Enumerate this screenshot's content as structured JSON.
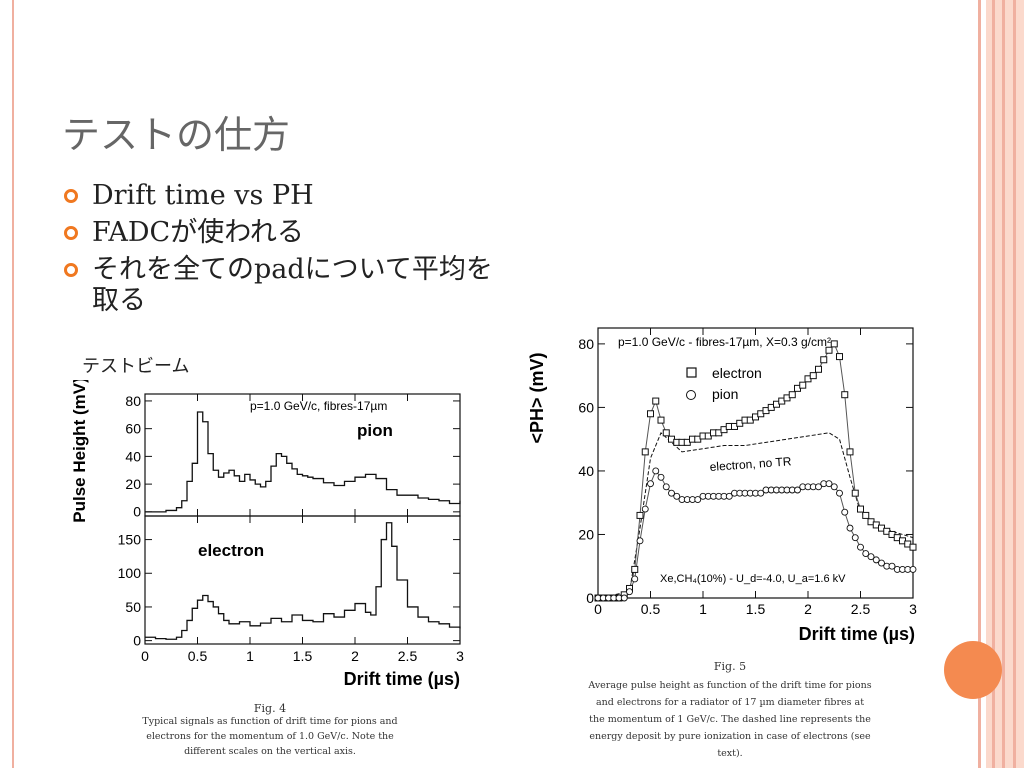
{
  "title": "テストの仕方",
  "bullets": [
    "Drift time vs PH",
    "FADCが使われる",
    "それを全てのpadについて平均を取る"
  ],
  "beam_label": "テストビーム",
  "colors": {
    "accent": "#f07820",
    "band": "#fbd9cc",
    "stripe": "#f0b0a0",
    "dot": "#f48a50"
  },
  "fig4": {
    "annotation": "p=1.0 GeV/c, fibres-17µm",
    "xlabel": "Drift time (µs)",
    "ylabel": "Pulse Height (mV)",
    "caption_title": "Fig. 4",
    "caption_lines": [
      "Typical signals as function of drift time for pions and",
      "electrons for the momentum of 1.0 GeV/c. Note the",
      "different scales on the vertical axis."
    ]
  },
  "fig5": {
    "caption_title": "Fig. 5",
    "caption_lines": [
      "Average pulse height as function of the drift time for pions",
      "and electrons for a radiator of 17 µm diameter fibres at",
      "the momentum of 1 GeV/c. The dashed line represents the",
      "energy deposit by pure ionization in case of electrons (see",
      "text)."
    ]
  },
  "chart_data": [
    {
      "type": "line",
      "panel": "top",
      "label": "pion",
      "x_ticks": [
        0,
        0.5,
        1,
        1.5,
        2,
        2.5,
        3
      ],
      "y_ticks": [
        0,
        20,
        40,
        60,
        80
      ],
      "xlim": [
        0,
        3
      ],
      "ylim": [
        -3,
        85
      ],
      "x": [
        0.0,
        0.1,
        0.2,
        0.3,
        0.35,
        0.4,
        0.45,
        0.5,
        0.55,
        0.6,
        0.65,
        0.7,
        0.75,
        0.8,
        0.85,
        0.9,
        0.95,
        1.0,
        1.05,
        1.1,
        1.15,
        1.2,
        1.25,
        1.3,
        1.35,
        1.4,
        1.45,
        1.5,
        1.55,
        1.6,
        1.7,
        1.8,
        1.9,
        2.0,
        2.1,
        2.2,
        2.3,
        2.4,
        2.5,
        2.6,
        2.7,
        2.8,
        2.9,
        3.0
      ],
      "y": [
        0,
        0,
        1,
        3,
        8,
        22,
        35,
        72,
        65,
        42,
        30,
        25,
        28,
        30,
        26,
        22,
        27,
        23,
        20,
        18,
        22,
        33,
        42,
        40,
        35,
        31,
        27,
        26,
        25,
        24,
        21,
        19,
        22,
        25,
        27,
        24,
        16,
        12,
        12,
        10,
        9,
        8,
        6,
        8
      ]
    },
    {
      "type": "line",
      "panel": "bottom",
      "label": "electron",
      "x_ticks": [
        0,
        0.5,
        1,
        1.5,
        2,
        2.5,
        3
      ],
      "y_ticks": [
        0,
        50,
        100,
        150
      ],
      "xlim": [
        0,
        3
      ],
      "ylim": [
        -5,
        185
      ],
      "x": [
        0.0,
        0.1,
        0.2,
        0.3,
        0.35,
        0.4,
        0.45,
        0.5,
        0.55,
        0.6,
        0.65,
        0.7,
        0.75,
        0.8,
        0.9,
        1.0,
        1.1,
        1.2,
        1.3,
        1.4,
        1.5,
        1.6,
        1.7,
        1.8,
        1.9,
        2.0,
        2.1,
        2.15,
        2.2,
        2.25,
        2.3,
        2.35,
        2.4,
        2.5,
        2.6,
        2.7,
        2.8,
        2.9,
        3.0
      ],
      "y": [
        5,
        3,
        2,
        5,
        15,
        30,
        48,
        60,
        67,
        58,
        50,
        40,
        30,
        25,
        28,
        22,
        26,
        33,
        28,
        38,
        30,
        28,
        40,
        35,
        45,
        55,
        42,
        38,
        80,
        150,
        175,
        140,
        90,
        50,
        35,
        28,
        25,
        20,
        18
      ]
    },
    {
      "type": "scatter",
      "panel": "fig5",
      "annotation_top": "p=1.0 GeV/c - fibres-17µm, X=0.3 g/cm²",
      "annotation_bottom": "Xe,CH₄(10%) - U_d=-4.0, U_a=1.6 kV",
      "dashed_label": "electron, no TR",
      "xlabel": "Drift time (µs)",
      "ylabel": "<PH> (mV)",
      "x_ticks": [
        0,
        0.5,
        1,
        1.5,
        2,
        2.5,
        3
      ],
      "y_ticks": [
        0,
        20,
        40,
        60,
        80
      ],
      "xlim": [
        0,
        3
      ],
      "ylim": [
        0,
        85
      ],
      "series": [
        {
          "name": "electron",
          "marker": "square",
          "x": [
            0.0,
            0.05,
            0.1,
            0.15,
            0.2,
            0.25,
            0.3,
            0.35,
            0.4,
            0.45,
            0.5,
            0.55,
            0.6,
            0.65,
            0.7,
            0.75,
            0.8,
            0.85,
            0.9,
            0.95,
            1.0,
            1.05,
            1.1,
            1.15,
            1.2,
            1.25,
            1.3,
            1.35,
            1.4,
            1.45,
            1.5,
            1.55,
            1.6,
            1.65,
            1.7,
            1.75,
            1.8,
            1.85,
            1.9,
            1.95,
            2.0,
            2.05,
            2.1,
            2.15,
            2.2,
            2.25,
            2.3,
            2.35,
            2.4,
            2.45,
            2.5,
            2.55,
            2.6,
            2.65,
            2.7,
            2.75,
            2.8,
            2.85,
            2.9,
            2.95,
            3.0
          ],
          "y": [
            0,
            0,
            0,
            0,
            0,
            1,
            3,
            9,
            26,
            46,
            58,
            62,
            56,
            52,
            50,
            49,
            49,
            49,
            50,
            50,
            51,
            51,
            52,
            52,
            53,
            54,
            54,
            55,
            56,
            56,
            57,
            58,
            59,
            60,
            61,
            62,
            63,
            64,
            66,
            67,
            69,
            70,
            72,
            75,
            78,
            80,
            76,
            64,
            46,
            33,
            28,
            26,
            24,
            23,
            22,
            21,
            20,
            19,
            18,
            17,
            16
          ]
        },
        {
          "name": "pion",
          "marker": "circle",
          "x": [
            0.0,
            0.05,
            0.1,
            0.15,
            0.2,
            0.25,
            0.3,
            0.35,
            0.4,
            0.45,
            0.5,
            0.55,
            0.6,
            0.65,
            0.7,
            0.75,
            0.8,
            0.85,
            0.9,
            0.95,
            1.0,
            1.05,
            1.1,
            1.15,
            1.2,
            1.25,
            1.3,
            1.35,
            1.4,
            1.45,
            1.5,
            1.55,
            1.6,
            1.65,
            1.7,
            1.75,
            1.8,
            1.85,
            1.9,
            1.95,
            2.0,
            2.05,
            2.1,
            2.15,
            2.2,
            2.25,
            2.3,
            2.35,
            2.4,
            2.45,
            2.5,
            2.55,
            2.6,
            2.65,
            2.7,
            2.75,
            2.8,
            2.85,
            2.9,
            2.95,
            3.0
          ],
          "y": [
            0,
            0,
            0,
            0,
            0,
            0,
            2,
            6,
            18,
            28,
            36,
            40,
            38,
            35,
            33,
            32,
            31,
            31,
            31,
            31,
            32,
            32,
            32,
            32,
            32,
            32,
            33,
            33,
            33,
            33,
            33,
            33,
            34,
            34,
            34,
            34,
            34,
            34,
            34,
            35,
            35,
            35,
            35,
            36,
            36,
            35,
            33,
            27,
            22,
            19,
            16,
            14,
            13,
            12,
            11,
            10,
            10,
            9,
            9,
            9,
            9
          ]
        },
        {
          "name": "electron, no TR",
          "style": "dashed",
          "x": [
            0.0,
            0.3,
            0.4,
            0.5,
            0.6,
            0.7,
            0.8,
            1.0,
            1.2,
            1.4,
            1.6,
            1.8,
            2.0,
            2.2,
            2.3,
            2.4,
            2.5,
            2.7,
            2.9,
            3.0
          ],
          "y": [
            0,
            2,
            22,
            44,
            52,
            49,
            46,
            47,
            48,
            48,
            49,
            50,
            51,
            52,
            50,
            38,
            27,
            22,
            20,
            19
          ]
        }
      ]
    }
  ]
}
